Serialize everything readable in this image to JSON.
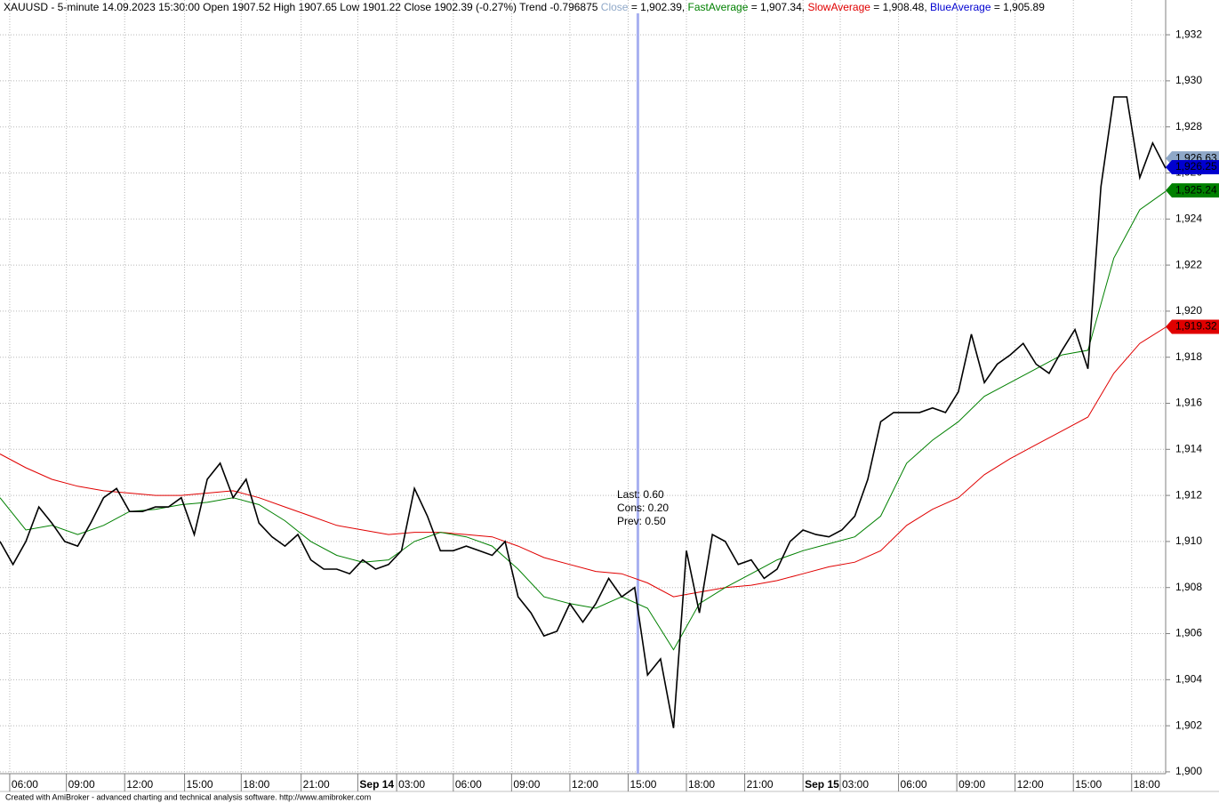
{
  "chart_data": {
    "type": "line",
    "header": [
      {
        "text": "XAUUSD - 5-minute 14.09.2023 15:30:00 Open 1907.52 High 1907.65 Low 1901.22 Close 1902.39 (-0.27%) Trend -0.796875 ",
        "color": "#000000"
      },
      {
        "text": "Close",
        "color": "#8fa8c8"
      },
      {
        "text": " = 1,902.39, ",
        "color": "#000000"
      },
      {
        "text": "FastAverage",
        "color": "#008000"
      },
      {
        "text": " = 1,907.34, ",
        "color": "#000000"
      },
      {
        "text": "SlowAverage",
        "color": "#e00000"
      },
      {
        "text": " = 1,908.48, ",
        "color": "#000000"
      },
      {
        "text": "BlueAverage",
        "color": "#0000d0"
      },
      {
        "text": " = 1,905.89",
        "color": "#000000"
      }
    ],
    "footer": "Created with AmiBroker - advanced charting and technical analysis software. http://www.amibroker.com",
    "xlim": [
      0,
      720
    ],
    "ylim": [
      1899.92,
      1932.93
    ],
    "yticks": [
      {
        "value": 1900,
        "label": "1,900"
      },
      {
        "value": 1902,
        "label": "1,902"
      },
      {
        "value": 1904,
        "label": "1,904"
      },
      {
        "value": 1906,
        "label": "1,906"
      },
      {
        "value": 1908,
        "label": "1,908"
      },
      {
        "value": 1910,
        "label": "1,910"
      },
      {
        "value": 1912,
        "label": "1,912"
      },
      {
        "value": 1914,
        "label": "1,914"
      },
      {
        "value": 1916,
        "label": "1,916"
      },
      {
        "value": 1918,
        "label": "1,918"
      },
      {
        "value": 1920,
        "label": "1,920"
      },
      {
        "value": 1922,
        "label": "1,922"
      },
      {
        "value": 1924,
        "label": "1,924"
      },
      {
        "value": 1926,
        "label": "1,926"
      },
      {
        "value": 1928,
        "label": "1,928"
      },
      {
        "value": 1930,
        "label": "1,930"
      },
      {
        "value": 1932,
        "label": "1,932"
      }
    ],
    "xticks": [
      {
        "value": 6,
        "label": "06:00"
      },
      {
        "value": 41,
        "label": "09:00"
      },
      {
        "value": 77,
        "label": "12:00"
      },
      {
        "value": 114,
        "label": "15:00"
      },
      {
        "value": 149,
        "label": "18:00"
      },
      {
        "value": 186,
        "label": "21:00"
      },
      {
        "value": 245,
        "label": "03:00"
      },
      {
        "value": 280,
        "label": "06:00"
      },
      {
        "value": 316,
        "label": "09:00"
      },
      {
        "value": 352,
        "label": "12:00"
      },
      {
        "value": 388,
        "label": "15:00"
      },
      {
        "value": 424,
        "label": "18:00"
      },
      {
        "value": 460,
        "label": "21:00"
      },
      {
        "value": 519,
        "label": "03:00"
      },
      {
        "value": 555,
        "label": "06:00"
      },
      {
        "value": 591,
        "label": "09:00"
      },
      {
        "value": 627,
        "label": "12:00"
      },
      {
        "value": 663,
        "label": "15:00"
      },
      {
        "value": 699,
        "label": "18:00"
      }
    ],
    "day_ticks": [
      {
        "value": 221,
        "label": "Sep 14"
      },
      {
        "value": 496,
        "label": "Sep 15"
      }
    ],
    "grid": true,
    "cursor_x": 394,
    "cursor_color": "#a8b0f0",
    "annotations": [
      "Last: 0.60",
      "Cons: 0.20",
      "Prev: 0.50"
    ],
    "annotation_color": "#30a030",
    "series": [
      {
        "name": "Close",
        "color": "#000000",
        "x": [
          0,
          8,
          16,
          24,
          32,
          40,
          48,
          56,
          64,
          72,
          80,
          88,
          96,
          104,
          112,
          120,
          128,
          136,
          144,
          152,
          160,
          168,
          176,
          184,
          192,
          200,
          208,
          216,
          224,
          232,
          240,
          248,
          256,
          264,
          272,
          280,
          288,
          296,
          304,
          312,
          320,
          328,
          336,
          344,
          352,
          360,
          368,
          376,
          384,
          392,
          400,
          408,
          416,
          424,
          432,
          440,
          448,
          456,
          464,
          472,
          480,
          488,
          496,
          504,
          512,
          520,
          528,
          536,
          544,
          552,
          560,
          568,
          576,
          584,
          592,
          600,
          608,
          616,
          624,
          632,
          640,
          648,
          656,
          664,
          672,
          680,
          688,
          696,
          704,
          712,
          720
        ],
        "values": [
          1910.0,
          1909.0,
          1910.0,
          1911.5,
          1910.8,
          1910.0,
          1909.8,
          1910.8,
          1911.9,
          1912.3,
          1911.3,
          1911.3,
          1911.5,
          1911.5,
          1911.9,
          1910.3,
          1912.7,
          1913.4,
          1911.9,
          1912.7,
          1910.8,
          1910.2,
          1909.8,
          1910.3,
          1909.2,
          1908.8,
          1908.8,
          1908.6,
          1909.2,
          1908.8,
          1909.0,
          1909.6,
          1912.3,
          1911.1,
          1909.6,
          1909.6,
          1909.8,
          1909.6,
          1909.4,
          1910.0,
          1907.6,
          1906.9,
          1905.9,
          1906.1,
          1907.3,
          1906.5,
          1907.3,
          1908.4,
          1907.6,
          1908.0,
          1904.2,
          1904.9,
          1901.9,
          1909.6,
          1906.9,
          1910.3,
          1910.0,
          1909.0,
          1909.2,
          1908.4,
          1908.8,
          1910.0,
          1910.5,
          1910.3,
          1910.2,
          1910.5,
          1911.1,
          1912.7,
          1915.2,
          1915.6,
          1915.6,
          1915.6,
          1915.8,
          1915.6,
          1916.5,
          1919.0,
          1916.9,
          1917.7,
          1918.1,
          1918.6,
          1917.7,
          1917.3,
          1918.3,
          1919.2,
          1917.5,
          1925.4,
          1929.3,
          1929.3,
          1925.8,
          1927.3,
          1926.2
        ]
      },
      {
        "name": "FastAverage",
        "color": "#008000",
        "x": [
          0,
          16,
          32,
          48,
          64,
          80,
          96,
          112,
          128,
          144,
          160,
          176,
          192,
          208,
          224,
          240,
          256,
          272,
          288,
          304,
          320,
          336,
          352,
          368,
          384,
          400,
          416,
          432,
          448,
          464,
          480,
          496,
          512,
          528,
          544,
          560,
          576,
          592,
          608,
          624,
          640,
          656,
          672,
          688,
          704,
          720
        ],
        "values": [
          1911.9,
          1910.5,
          1910.7,
          1910.3,
          1910.7,
          1911.3,
          1911.4,
          1911.6,
          1911.7,
          1911.9,
          1911.6,
          1910.9,
          1910.0,
          1909.4,
          1909.1,
          1909.2,
          1910.0,
          1910.4,
          1910.2,
          1909.8,
          1908.8,
          1907.6,
          1907.3,
          1907.1,
          1907.6,
          1907.1,
          1905.3,
          1907.3,
          1908.0,
          1908.6,
          1909.2,
          1909.6,
          1909.9,
          1910.2,
          1911.1,
          1913.4,
          1914.4,
          1915.2,
          1916.3,
          1916.9,
          1917.5,
          1918.1,
          1918.3,
          1922.3,
          1924.4,
          1925.2
        ]
      },
      {
        "name": "SlowAverage",
        "color": "#e00000",
        "x": [
          0,
          16,
          32,
          48,
          64,
          80,
          96,
          112,
          128,
          144,
          160,
          176,
          192,
          208,
          224,
          240,
          256,
          272,
          288,
          304,
          320,
          336,
          352,
          368,
          384,
          400,
          416,
          432,
          448,
          464,
          480,
          496,
          512,
          528,
          544,
          560,
          576,
          592,
          608,
          624,
          640,
          656,
          672,
          688,
          704,
          720
        ],
        "values": [
          1913.8,
          1913.2,
          1912.7,
          1912.4,
          1912.2,
          1912.1,
          1912.0,
          1912.0,
          1912.1,
          1912.2,
          1911.9,
          1911.5,
          1911.1,
          1910.7,
          1910.5,
          1910.3,
          1910.4,
          1910.4,
          1910.3,
          1910.2,
          1909.8,
          1909.3,
          1909.0,
          1908.7,
          1908.6,
          1908.2,
          1907.6,
          1907.8,
          1908.0,
          1908.1,
          1908.3,
          1908.6,
          1908.9,
          1909.1,
          1909.6,
          1910.7,
          1911.4,
          1911.9,
          1912.9,
          1913.6,
          1914.2,
          1914.8,
          1915.4,
          1917.3,
          1918.6,
          1919.3
        ]
      }
    ],
    "last_labels": [
      {
        "value": 1926.63,
        "label": "1,926.63",
        "color": "#8fa8c8"
      },
      {
        "value": 1926.25,
        "label": "1,926.25",
        "color": "#0000d0"
      },
      {
        "value": 1925.24,
        "label": "1,925.24",
        "color": "#008000"
      },
      {
        "value": 1919.32,
        "label": "1,919.32",
        "color": "#e00000"
      }
    ]
  }
}
